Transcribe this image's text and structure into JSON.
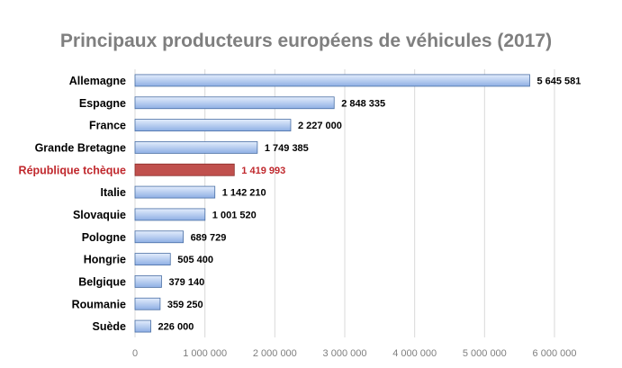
{
  "chart_data": {
    "type": "bar",
    "orientation": "horizontal",
    "title": "Principaux producteurs européens de véhicules (2017)",
    "categories": [
      "Allemagne",
      "Espagne",
      "France",
      "Grande Bretagne",
      "République tchèque",
      "Italie",
      "Slovaquie",
      "Pologne",
      "Hongrie",
      "Belgique",
      "Roumanie",
      "Suède"
    ],
    "values": [
      5645581,
      2848335,
      2227000,
      1749385,
      1419993,
      1142210,
      1001520,
      689729,
      505400,
      379140,
      359250,
      226000
    ],
    "value_labels": [
      "5 645 581",
      "2 848 335",
      "2 227 000",
      "1 749 385",
      "1 419 993",
      "1 142 210",
      "1 001 520",
      "689 729",
      "505 400",
      "379 140",
      "359 250",
      "226 000"
    ],
    "highlight": "République tchèque",
    "xlim": [
      0,
      6000000
    ],
    "xticks": [
      0,
      1000000,
      2000000,
      3000000,
      4000000,
      5000000,
      6000000
    ],
    "xtick_labels": [
      "0",
      "1 000 000",
      "2 000 000",
      "3 000 000",
      "4 000 000",
      "5 000 000",
      "6 000 000"
    ],
    "grid": "vertical",
    "colors": {
      "bar_top": "#dce8fb",
      "bar_bottom": "#8fb0e6",
      "bar_border": "#4a6fa5",
      "highlight_bar": "#c0504d",
      "highlight_border": "#8c2d2a",
      "highlight_text": "#c0282d",
      "title": "#7f7f7f",
      "grid": "#d9d9d9"
    }
  }
}
